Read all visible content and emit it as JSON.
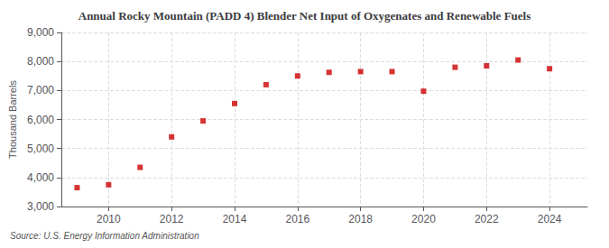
{
  "chart_data": {
    "type": "scatter",
    "title": "Annual Rocky Mountain (PADD 4) Blender Net Input of Oxygenates and Renewable Fuels",
    "ylabel": "Thousand Barrels",
    "annotation": "Source: U.S. Energy Information Administration",
    "x": [
      2009,
      2010,
      2011,
      2012,
      2013,
      2014,
      2015,
      2016,
      2017,
      2018,
      2019,
      2020,
      2021,
      2022,
      2023,
      2024
    ],
    "values": [
      3650,
      3750,
      4350,
      5400,
      5950,
      6550,
      7200,
      7500,
      7625,
      7650,
      7650,
      6975,
      7800,
      7850,
      8050,
      7750
    ],
    "color": "#cc0000",
    "marker": "square",
    "xlim": [
      2008.5,
      2025.2
    ],
    "xticks": [
      2010,
      2012,
      2014,
      2016,
      2018,
      2020,
      2022,
      2024
    ],
    "ylim": [
      3000,
      9000
    ],
    "yticks": [
      {
        "value": 3000,
        "label": "3,000"
      },
      {
        "value": 4000,
        "label": "4,000"
      },
      {
        "value": 5000,
        "label": "5,000"
      },
      {
        "value": 6000,
        "label": "6,000"
      },
      {
        "value": 7000,
        "label": "7,000"
      },
      {
        "value": 8000,
        "label": "8,000"
      },
      {
        "value": 9000,
        "label": "9,000"
      }
    ],
    "grid": true
  }
}
